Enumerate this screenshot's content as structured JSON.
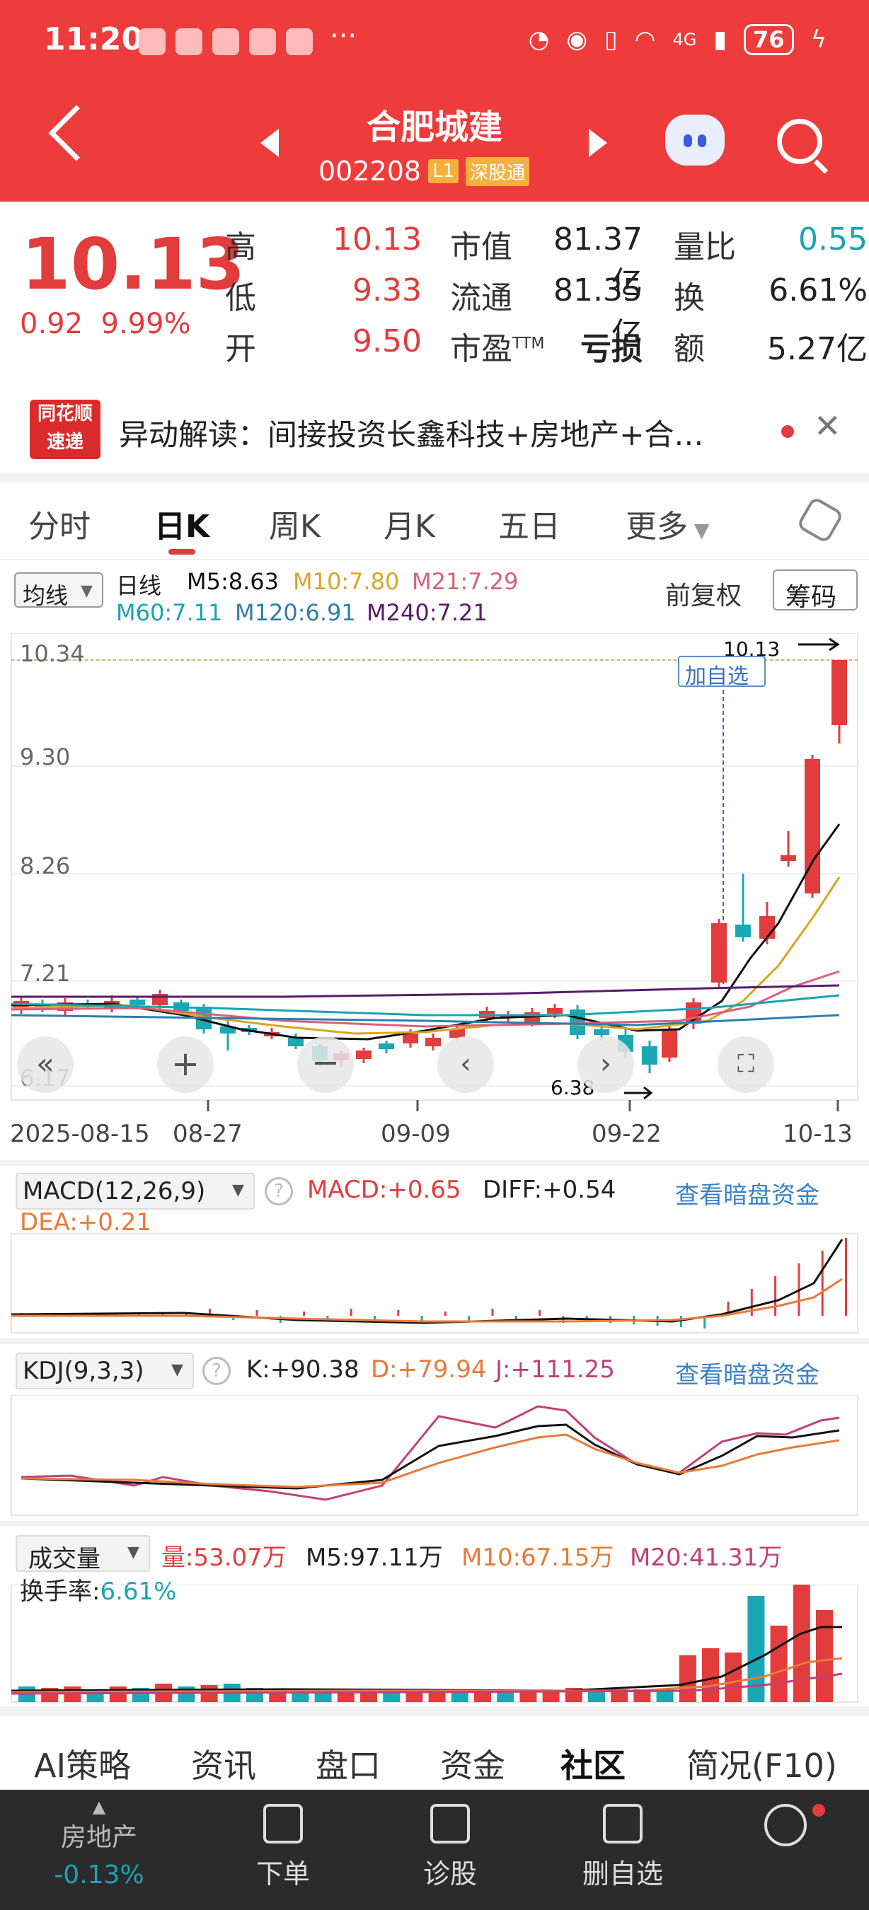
{
  "status": {
    "time": "11:20",
    "dots": "···",
    "network": "4G",
    "battery": "76"
  },
  "header": {
    "name": "合肥城建",
    "code": "002208",
    "tag1": "L1",
    "tag2": "深股通"
  },
  "quote": {
    "price": "10.13",
    "change": "0.92",
    "pct": "9.99%",
    "high_lbl": "高",
    "high": "10.13",
    "low_lbl": "低",
    "low": "9.33",
    "open_lbl": "开",
    "open": "9.50",
    "mcap_lbl": "市值",
    "mcap": "81.37亿",
    "float_lbl": "流通",
    "float": "81.35亿",
    "pe_lbl": "市盈",
    "pe_sup": "TTM",
    "pe": "亏损",
    "vr_lbl": "量比",
    "vr": "0.55",
    "turn_lbl": "换",
    "turn": "6.61%",
    "amt_lbl": "额",
    "amt": "5.27亿"
  },
  "news": {
    "logo1": "同花顺",
    "logo2": "速递",
    "text": "异动解读：间接投资长鑫科技+房地产+合…"
  },
  "tabs": [
    "分时",
    "日K",
    "周K",
    "月K",
    "五日",
    "更多"
  ],
  "ma": {
    "selector": "均线",
    "period": "日线",
    "m5": "M5:8.63",
    "m10": "M10:7.80",
    "m21": "M21:7.29",
    "m60": "M60:7.11",
    "m120": "M120:6.91",
    "m240": "M240:7.21",
    "adjust": "前复权",
    "chips": "筹码"
  },
  "kline": {
    "y_ticks": [
      "10.34",
      "9.30",
      "8.26",
      "7.21",
      "6.17"
    ],
    "x_ticks": [
      "2025-08-15",
      "08-27",
      "09-09",
      "09-22",
      "10-13"
    ],
    "high_label": "10.13",
    "low_label": "6.38",
    "watch_label": "加自选",
    "colors": {
      "up": "#e23c3c",
      "down": "#1ba8b5"
    }
  },
  "macd": {
    "name": "MACD(12,26,9)",
    "macd": "MACD:+0.65",
    "diff": "DIFF:+0.54",
    "dea": "DEA:+0.21",
    "link": "查看暗盘资金"
  },
  "kdj": {
    "name": "KDJ(9,3,3)",
    "k": "K:+90.38",
    "d": "D:+79.94",
    "j": "J:+111.25",
    "link": "查看暗盘资金"
  },
  "vol": {
    "name": "成交量",
    "v": "量:53.07万",
    "m5": "M5:97.11万",
    "m10": "M10:67.15万",
    "m20": "M20:41.31万",
    "turn_lbl": "换手率:",
    "turn": "6.61%"
  },
  "bottom_tabs": [
    "AI策略",
    "资讯",
    "盘口",
    "资金",
    "社区",
    "简况(F10)"
  ],
  "bottom_bar": {
    "sector": "房地产",
    "sector_chg": "-0.13%",
    "order": "下单",
    "diag": "诊股",
    "del": "删自选"
  }
}
